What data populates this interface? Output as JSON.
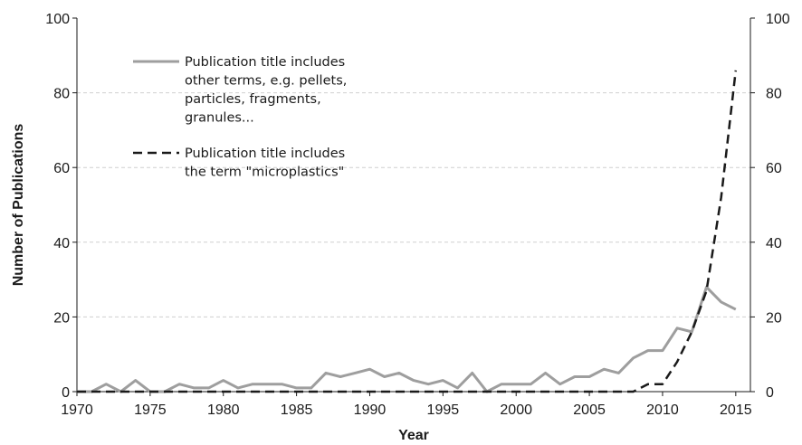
{
  "chart_data": {
    "type": "line",
    "xlabel": "Year",
    "ylabel": "Number of Publications",
    "xlim": [
      1970,
      2016
    ],
    "ylim": [
      0,
      100
    ],
    "x_ticks": [
      "1970",
      "1975",
      "1980",
      "1985",
      "1990",
      "1995",
      "2000",
      "2005",
      "2010",
      "2015"
    ],
    "y_ticks": [
      "0",
      "20",
      "40",
      "60",
      "80",
      "100"
    ],
    "y2_ticks": [
      "0",
      "20",
      "40",
      "60",
      "80",
      "100"
    ],
    "grid": "horizontal dashed",
    "legend_position": "top-left",
    "x": [
      1970,
      1971,
      1972,
      1973,
      1974,
      1975,
      1976,
      1977,
      1978,
      1979,
      1980,
      1981,
      1982,
      1983,
      1984,
      1985,
      1986,
      1987,
      1988,
      1989,
      1990,
      1991,
      1992,
      1993,
      1994,
      1995,
      1996,
      1997,
      1998,
      1999,
      2000,
      2001,
      2002,
      2003,
      2004,
      2005,
      2006,
      2007,
      2008,
      2009,
      2010,
      2011,
      2012,
      2013,
      2014,
      2015
    ],
    "series": [
      {
        "name": "Publication title includes other terms, e.g. pellets, particles, fragments, granules...",
        "legend_lines": [
          "Publication title includes",
          "other terms, e.g. pellets,",
          "particles, fragments,",
          "granules..."
        ],
        "color": "#9e9e9e",
        "style": "solid",
        "values": [
          0,
          0,
          2,
          0,
          3,
          0,
          0,
          2,
          1,
          1,
          3,
          1,
          2,
          2,
          2,
          1,
          1,
          5,
          4,
          5,
          6,
          4,
          5,
          3,
          2,
          3,
          1,
          5,
          0,
          2,
          2,
          2,
          5,
          2,
          4,
          4,
          6,
          5,
          9,
          11,
          11,
          17,
          16,
          28,
          24,
          22
        ]
      },
      {
        "name": "Publication title includes the term \"microplastics\"",
        "legend_lines": [
          "Publication title includes",
          "the term \"microplastics\""
        ],
        "color": "#1a1a1a",
        "style": "dashed",
        "values": [
          0,
          0,
          0,
          0,
          0,
          0,
          0,
          0,
          0,
          0,
          0,
          0,
          0,
          0,
          0,
          0,
          0,
          0,
          0,
          0,
          0,
          0,
          0,
          0,
          0,
          0,
          0,
          0,
          0,
          0,
          0,
          0,
          0,
          0,
          0,
          0,
          0,
          0,
          0,
          2,
          2,
          8,
          16,
          27,
          52,
          86
        ]
      }
    ]
  }
}
